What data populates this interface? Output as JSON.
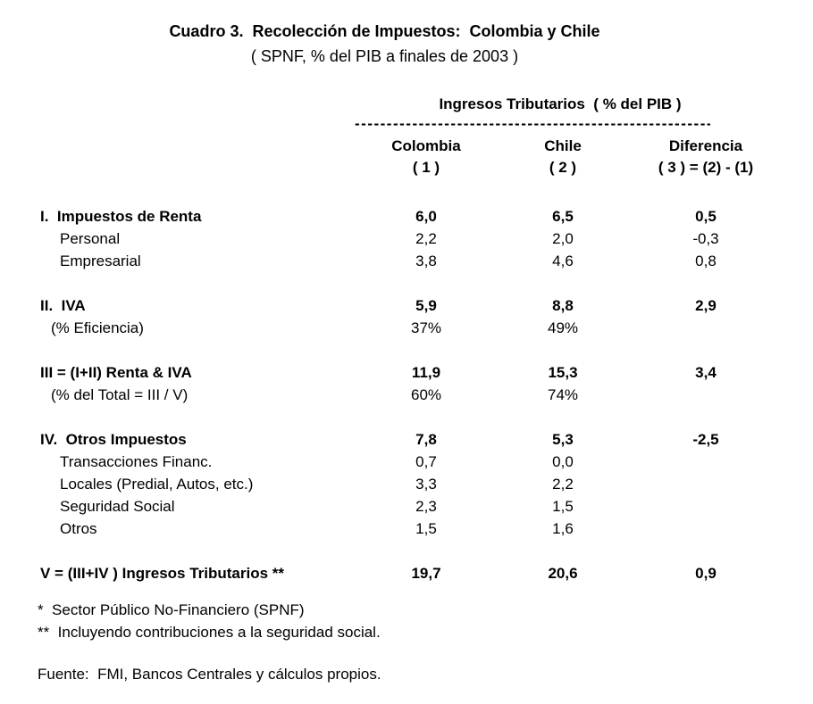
{
  "title": "Cuadro 3.  Recolección de Impuestos:  Colombia y Chile",
  "subtitle": "( SPNF, % del PIB a finales de 2003 )",
  "table": {
    "group_header": "Ingresos Tributarios  ( % del PIB )",
    "separator": "------------------------------------------------------------",
    "columns": {
      "colombia": {
        "name": "Colombia",
        "number": "( 1 )"
      },
      "chile": {
        "name": "Chile",
        "number": "( 2 )"
      },
      "diferencia": {
        "name": "Diferencia",
        "number": "( 3 ) = (2) - (1)"
      }
    },
    "rows": [
      {
        "label": "I.  Impuestos de Renta",
        "colombia": "6,0",
        "chile": "6,5",
        "diff": "0,5",
        "bold": true,
        "indent": 0
      },
      {
        "label": "Personal",
        "colombia": "2,2",
        "chile": "2,0",
        "diff": "-0,3",
        "bold": false,
        "indent": 1
      },
      {
        "label": "Empresarial",
        "colombia": "3,8",
        "chile": "4,6",
        "diff": "0,8",
        "bold": false,
        "indent": 1
      },
      {
        "type": "spacer"
      },
      {
        "label": "II.  IVA",
        "colombia": "5,9",
        "chile": "8,8",
        "diff": "2,9",
        "bold": true,
        "indent": 0
      },
      {
        "label": "(% Eficiencia)",
        "colombia": "37%",
        "chile": "49%",
        "diff": "",
        "bold": false,
        "indent": 2
      },
      {
        "type": "spacer"
      },
      {
        "label": "III = (I+II) Renta & IVA",
        "colombia": "11,9",
        "chile": "15,3",
        "diff": "3,4",
        "bold": true,
        "indent": 0
      },
      {
        "label": "(% del Total = III / V)",
        "colombia": "60%",
        "chile": "74%",
        "diff": "",
        "bold": false,
        "indent": 2
      },
      {
        "type": "spacer"
      },
      {
        "label": "IV.  Otros Impuestos",
        "colombia": "7,8",
        "chile": "5,3",
        "diff": "-2,5",
        "bold": true,
        "indent": 0
      },
      {
        "label": "Transacciones Financ.",
        "colombia": "0,7",
        "chile": "0,0",
        "diff": "",
        "bold": false,
        "indent": 1
      },
      {
        "label": "Locales (Predial, Autos, etc.)",
        "colombia": "3,3",
        "chile": "2,2",
        "diff": "",
        "bold": false,
        "indent": 1
      },
      {
        "label": "Seguridad Social",
        "colombia": "2,3",
        "chile": "1,5",
        "diff": "",
        "bold": false,
        "indent": 1
      },
      {
        "label": "Otros",
        "colombia": "1,5",
        "chile": "1,6",
        "diff": "",
        "bold": false,
        "indent": 1
      },
      {
        "type": "spacer"
      },
      {
        "label": "V = (III+IV ) Ingresos Tributarios **",
        "colombia": "19,7",
        "chile": "20,6",
        "diff": "0,9",
        "bold": true,
        "indent": 0
      }
    ]
  },
  "footnotes": [
    "*  Sector Público No-Financiero (SPNF)",
    "**  Incluyendo contribuciones a la seguridad social."
  ],
  "source": "Fuente:  FMI, Bancos Centrales y cálculos propios."
}
